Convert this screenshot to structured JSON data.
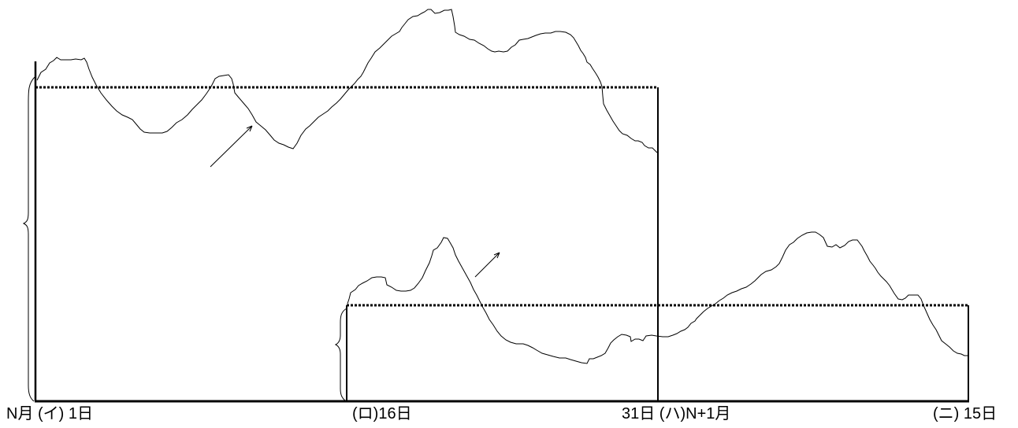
{
  "labels": {
    "period1_start": "N月 (イ) 1日",
    "period2_start": "(ロ)16日",
    "period1_end": "31日 (ハ)N+1月",
    "period2_end": "(ニ) 15日"
  }
}
